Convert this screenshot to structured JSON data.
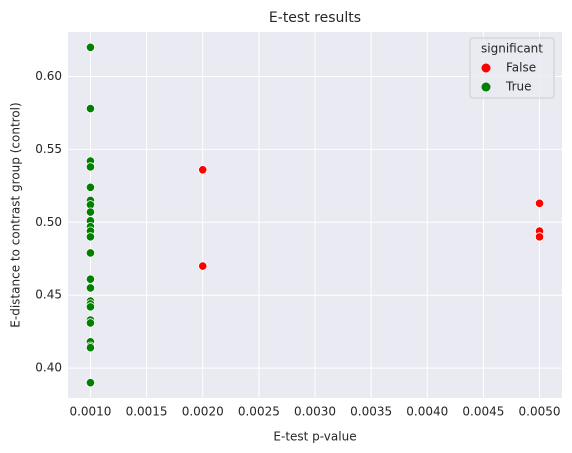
{
  "chart_data": {
    "type": "scatter",
    "title": "E-test results",
    "x_label": "E-test p-value",
    "y_label": "E-distance to contrast group (control)",
    "legend_title": "significant",
    "legend_position": "upper right",
    "grid": true,
    "xlim": [
      0.0008,
      0.0052
    ],
    "xticks": [
      {
        "value": 0.001,
        "label": "0.0010"
      },
      {
        "value": 0.0015,
        "label": "0.0015"
      },
      {
        "value": 0.002,
        "label": "0.0020"
      },
      {
        "value": 0.0025,
        "label": "0.0025"
      },
      {
        "value": 0.003,
        "label": "0.0030"
      },
      {
        "value": 0.0035,
        "label": "0.0035"
      },
      {
        "value": 0.004,
        "label": "0.0040"
      },
      {
        "value": 0.0045,
        "label": "0.0045"
      },
      {
        "value": 0.005,
        "label": "0.0050"
      }
    ],
    "ylim": [
      0.3795,
      0.6305
    ],
    "yticks": [
      {
        "value": 0.4,
        "label": "0.40"
      },
      {
        "value": 0.45,
        "label": "0.45"
      },
      {
        "value": 0.5,
        "label": "0.50"
      },
      {
        "value": 0.55,
        "label": "0.55"
      },
      {
        "value": 0.6,
        "label": "0.60"
      }
    ],
    "series": [
      {
        "name": "False",
        "color": "#ff0000",
        "x": [
          0.002,
          0.002,
          0.005,
          0.005,
          0.005
        ],
        "values": [
          0.536,
          0.47,
          0.513,
          0.494,
          0.49
        ]
      },
      {
        "name": "True",
        "color": "#008000",
        "x": [
          0.001,
          0.001,
          0.001,
          0.001,
          0.001,
          0.001,
          0.001,
          0.001,
          0.001,
          0.001,
          0.001,
          0.001,
          0.001,
          0.001,
          0.001,
          0.001,
          0.001,
          0.001,
          0.001,
          0.001,
          0.001,
          0.001,
          0.001,
          0.001
        ],
        "values": [
          0.62,
          0.578,
          0.542,
          0.538,
          0.524,
          0.515,
          0.512,
          0.507,
          0.501,
          0.497,
          0.494,
          0.49,
          0.479,
          0.461,
          0.455,
          0.446,
          0.444,
          0.442,
          0.433,
          0.431,
          0.418,
          0.415,
          0.414,
          0.39
        ]
      }
    ]
  }
}
